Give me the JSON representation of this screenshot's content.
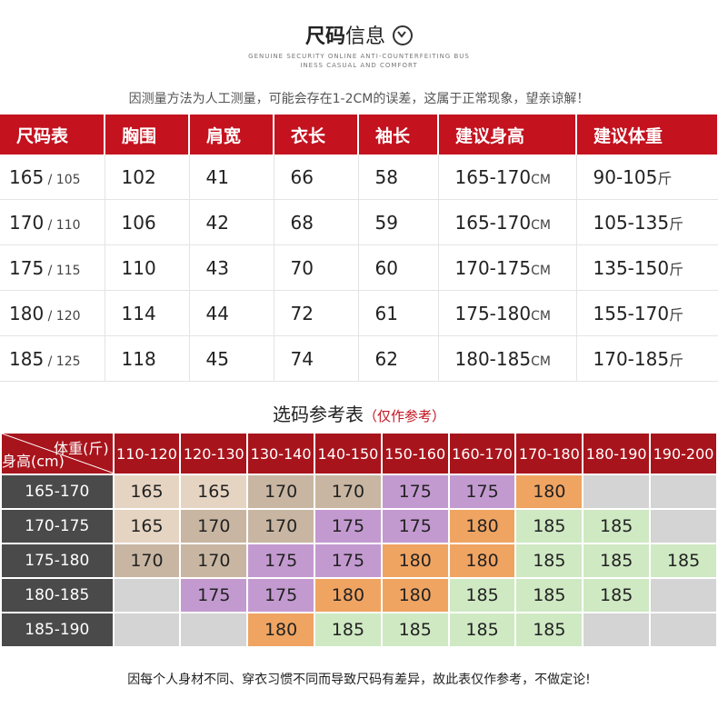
{
  "header": {
    "title_bold": "尺码",
    "title_rest": "信息",
    "subtitle_line1": "GENUINE SECURITY ONLINE ANTI-COUNTERFEITING BUS",
    "subtitle_line2": "INESS CASUAL AND COMFORT"
  },
  "note_top": "因测量方法为人工测量，可能会存在1-2CM的误差，这属于正常现象，望亲谅解！",
  "size_table": {
    "headers": [
      "尺码表",
      "胸围",
      "肩宽",
      "衣长",
      "袖长",
      "建议身高",
      "建议体重"
    ],
    "rows": [
      {
        "size": "165",
        "size_sub": " / 105",
        "chest": "102",
        "shoulder": "41",
        "length": "66",
        "sleeve": "58",
        "height": "165-170",
        "height_unit": "CM",
        "weight": "90-105",
        "weight_unit": "斤"
      },
      {
        "size": "170",
        "size_sub": " / 110",
        "chest": "106",
        "shoulder": "42",
        "length": "68",
        "sleeve": "59",
        "height": "165-170",
        "height_unit": "CM",
        "weight": "105-135",
        "weight_unit": "斤"
      },
      {
        "size": "175",
        "size_sub": " / 115",
        "chest": "110",
        "shoulder": "43",
        "length": "70",
        "sleeve": "60",
        "height": "170-175",
        "height_unit": "CM",
        "weight": "135-150",
        "weight_unit": "斤"
      },
      {
        "size": "180",
        "size_sub": " / 120",
        "chest": "114",
        "shoulder": "44",
        "length": "72",
        "sleeve": "61",
        "height": "175-180",
        "height_unit": "CM",
        "weight": "155-170",
        "weight_unit": "斤"
      },
      {
        "size": "185",
        "size_sub": " / 125",
        "chest": "118",
        "shoulder": "45",
        "length": "74",
        "sleeve": "62",
        "height": "180-185",
        "height_unit": "CM",
        "weight": "170-185",
        "weight_unit": "斤"
      }
    ]
  },
  "selection": {
    "title": "选码参考表",
    "title_note": "（仅作参考）",
    "corner_weight": "体重(斤)",
    "corner_height": "身高(cm)",
    "weight_cols": [
      "110-120",
      "120-130",
      "130-140",
      "140-150",
      "150-160",
      "160-170",
      "170-180",
      "180-190",
      "190-200"
    ],
    "rows": [
      {
        "height": "165-170",
        "cells": [
          "165",
          "165",
          "170",
          "170",
          "175",
          "175",
          "180",
          "",
          ""
        ]
      },
      {
        "height": "170-175",
        "cells": [
          "165",
          "170",
          "170",
          "175",
          "175",
          "180",
          "185",
          "185",
          ""
        ]
      },
      {
        "height": "175-180",
        "cells": [
          "170",
          "170",
          "175",
          "175",
          "180",
          "180",
          "185",
          "185",
          "185"
        ]
      },
      {
        "height": "180-185",
        "cells": [
          "",
          "175",
          "175",
          "180",
          "180",
          "185",
          "185",
          "185",
          ""
        ]
      },
      {
        "height": "185-190",
        "cells": [
          "",
          "",
          "180",
          "185",
          "185",
          "185",
          "185",
          "",
          ""
        ]
      }
    ]
  },
  "note_bottom": "因每个人身材不同、穿衣习惯不同而导致尺码有差异，故此表仅作参考，不做定论!",
  "colors": {
    "header_red": "#c4121f",
    "grid_red": "#a8141c",
    "row_header_gray": "#4a4a4a",
    "empty": "#d4d4d4",
    "size_165": "#e6d4c2",
    "size_170": "#c8b6a2",
    "size_175": "#c39ad0",
    "size_180": "#f0a462",
    "size_185": "#cfe9c3"
  }
}
